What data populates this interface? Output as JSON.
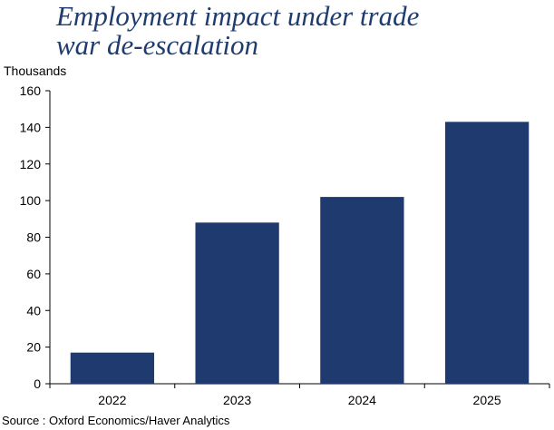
{
  "title_lines": [
    "Employment impact under trade",
    "war de-escalation"
  ],
  "unit_label": "Thousands",
  "source": "Source : Oxford Economics/Haver Analytics",
  "colors": {
    "bar": "#1f3a6e",
    "title": "#1f3c6e",
    "axis": "#000000"
  },
  "chart_data": {
    "type": "bar",
    "title": "Employment impact under trade war de-escalation",
    "ylabel": "Thousands",
    "xlabel": "",
    "categories": [
      "2022",
      "2023",
      "2024",
      "2025"
    ],
    "values": [
      17,
      88,
      102,
      143
    ],
    "ylim": [
      0,
      160
    ],
    "yticks": [
      0,
      20,
      40,
      60,
      80,
      100,
      120,
      140,
      160
    ],
    "grid": false,
    "legend": "none"
  }
}
